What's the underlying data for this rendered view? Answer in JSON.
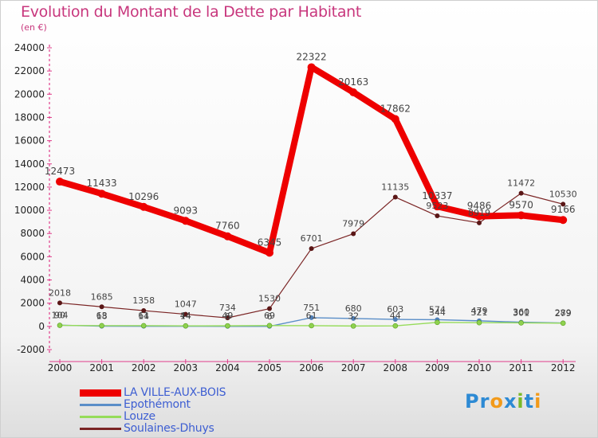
{
  "title": "Evolution du Montant de la Dette par Habitant",
  "subtitle": "(en €)",
  "logo": {
    "text": "Proxiti",
    "letters": [
      {
        "ch": "P",
        "color": "#2d8ad4"
      },
      {
        "ch": "r",
        "color": "#2d8ad4"
      },
      {
        "ch": "o",
        "color": "#f29a1a"
      },
      {
        "ch": "x",
        "color": "#2d8ad4"
      },
      {
        "ch": "i",
        "color": "#7ab928"
      },
      {
        "ch": "t",
        "color": "#2d8ad4"
      },
      {
        "ch": "i",
        "color": "#f29a1a"
      }
    ]
  },
  "chart_data": {
    "type": "line",
    "title": "Evolution du Montant de la Dette par Habitant",
    "subtitle": "(en €)",
    "x": [
      "2000",
      "2001",
      "2002",
      "2003",
      "2004",
      "2005",
      "2006",
      "2007",
      "2008",
      "2009",
      "2010",
      "2011",
      "2012"
    ],
    "y_ticks": [
      "-2000",
      "0",
      "2000",
      "4000",
      "6000",
      "8000",
      "10000",
      "12000",
      "14000",
      "16000",
      "18000",
      "20000",
      "22000",
      "24000"
    ],
    "ylim": [
      -2000,
      24000
    ],
    "grid": false,
    "legend_position": "bottom-left",
    "series": [
      {
        "name": "LA VILLE-AUX-BOIS",
        "color": "#ee0000",
        "values": [
          12473,
          11433,
          10296,
          9093,
          7760,
          6345,
          22322,
          20163,
          17862,
          10337,
          9486,
          9570,
          9166
        ],
        "labels": [
          "12473",
          "11433",
          "10296",
          "9093",
          "7760",
          "6345",
          "22322",
          "20163",
          "17862",
          "10337",
          "9486",
          "9570",
          "9166"
        ]
      },
      {
        "name": "Epothémont",
        "color": "#5a8ec8",
        "values": [
          104,
          18,
          14,
          14,
          6,
          6,
          751,
          680,
          603,
          574,
          479,
          360,
          289
        ],
        "labels": [
          "104",
          "18",
          "14",
          "14",
          "6",
          "6",
          "751",
          "680",
          "603",
          "574",
          "479",
          "360",
          "289"
        ]
      },
      {
        "name": "Louze",
        "color": "#96dc5a",
        "values": [
          90,
          63,
          61,
          44,
          49,
          69,
          61,
          32,
          44,
          344,
          321,
          301,
          279
        ],
        "labels": [
          "90",
          "63",
          "61",
          "44",
          "49",
          "69",
          "61",
          "32",
          "44",
          "344",
          "321",
          "301",
          "279"
        ]
      },
      {
        "name": "Soulaines-Dhuys",
        "color": "#7a2424",
        "values": [
          2018,
          1685,
          1358,
          1047,
          734,
          1530,
          6701,
          7979,
          11135,
          9523,
          8919,
          11472,
          10530
        ],
        "labels": [
          "2018",
          "1685",
          "1358",
          "1047",
          "734",
          "1530",
          "6701",
          "7979",
          "11135",
          "9523",
          "8919",
          "11472",
          "10530"
        ]
      }
    ]
  }
}
